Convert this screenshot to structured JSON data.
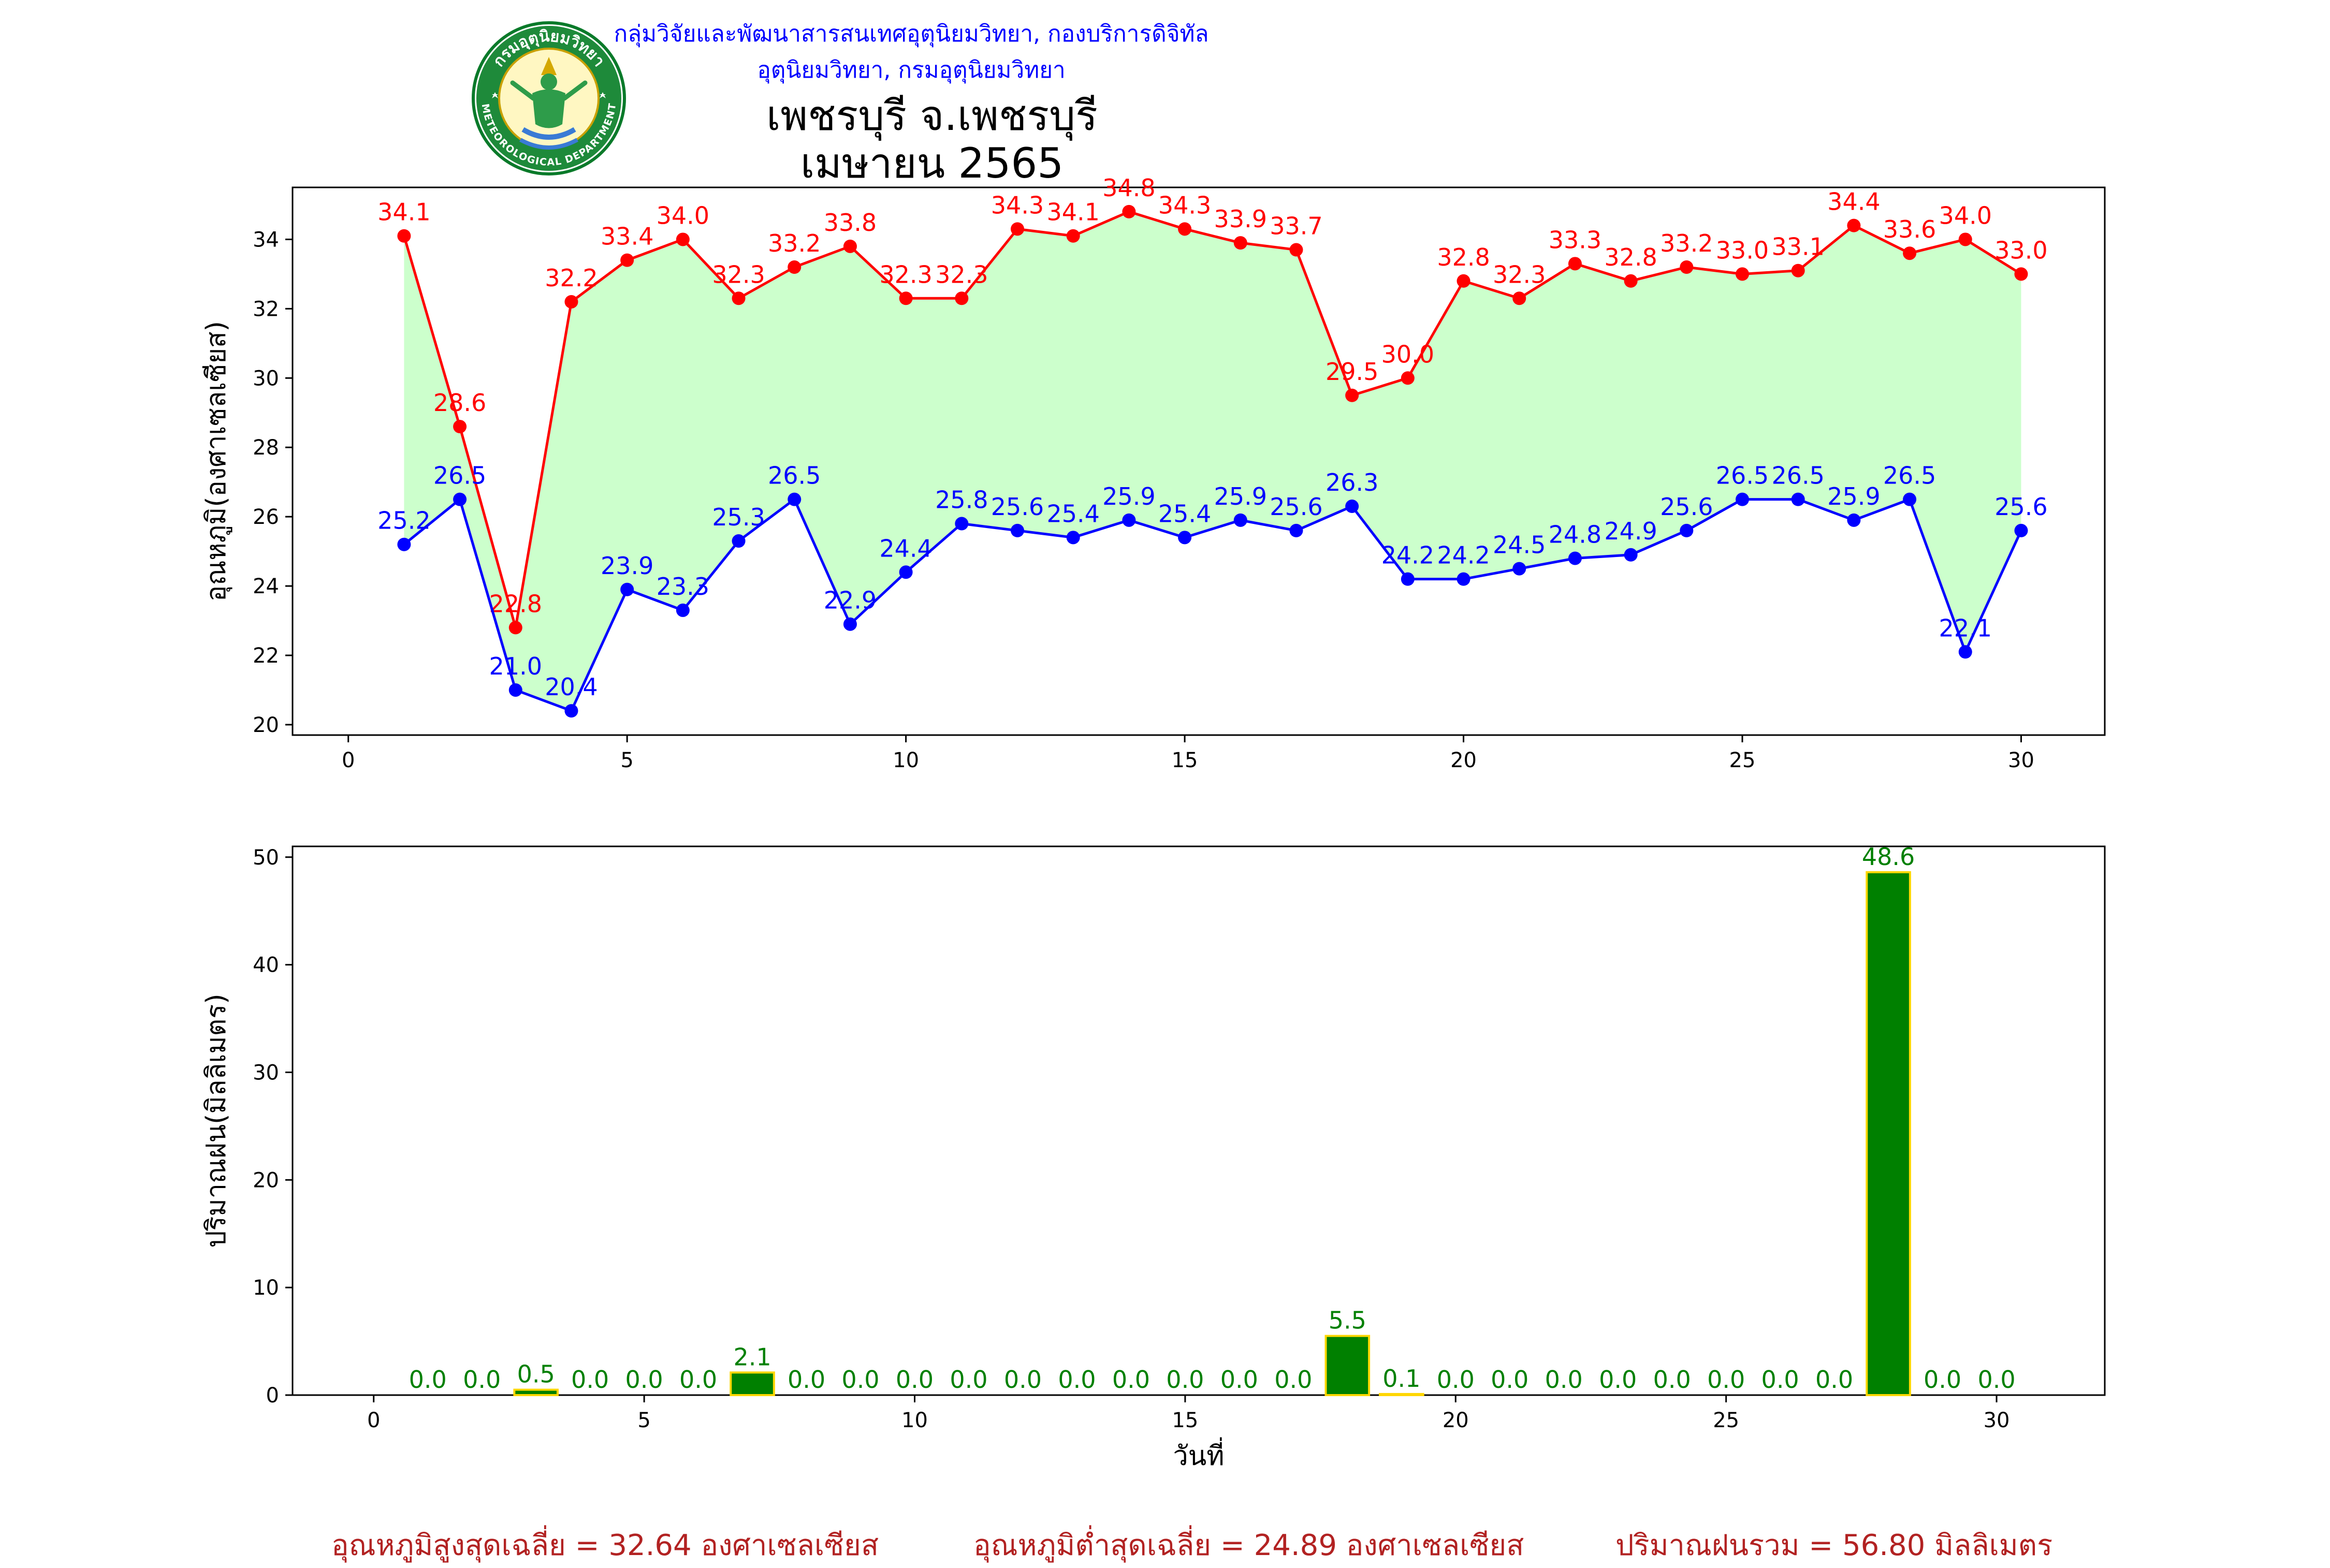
{
  "header": {
    "organization": "กลุ่มวิจัยและพัฒนาสารสนเทศอุตุนิยมวิทยา, กองบริการดิจิทัลอุตุนิยมวิทยา, กรมอุตุนิยมวิทยา",
    "station": "เพชรบุรี จ.เพชรบุรี",
    "period": "เมษายน 2565",
    "logo_text_top": "กรมอุตุนิยมวิทยา",
    "logo_text_bottom": "METEOROLOGICAL DEPARTMENT"
  },
  "colors": {
    "max_temp": "#ff0000",
    "min_temp": "#0000ff",
    "fill": "#ccffcc",
    "rain_bar": "#008000",
    "rain_edge": "#ffd700",
    "footer": "#b22222"
  },
  "chart_data": [
    {
      "type": "line",
      "ylabel": "อุณหภูมิ(องศาเซลเซียส)",
      "xlim": [
        -1,
        31.5
      ],
      "ylim": [
        19.7,
        35.5
      ],
      "xticks": [
        0,
        5,
        10,
        15,
        20,
        25,
        30
      ],
      "yticks": [
        20,
        22,
        24,
        26,
        28,
        30,
        32,
        34
      ],
      "x": [
        1,
        2,
        3,
        4,
        5,
        6,
        7,
        8,
        9,
        10,
        11,
        12,
        13,
        14,
        15,
        16,
        17,
        18,
        19,
        20,
        21,
        22,
        23,
        24,
        25,
        26,
        27,
        28,
        29,
        30
      ],
      "series": [
        {
          "key": "max",
          "values": [
            34.1,
            28.6,
            22.8,
            32.2,
            33.4,
            34.0,
            32.3,
            33.2,
            33.8,
            32.3,
            32.3,
            34.3,
            34.1,
            34.8,
            34.3,
            33.9,
            33.7,
            29.5,
            30.0,
            32.8,
            32.3,
            33.3,
            32.8,
            33.2,
            33.0,
            33.1,
            34.4,
            33.6,
            34.0,
            33.0
          ]
        },
        {
          "key": "min",
          "values": [
            25.2,
            26.5,
            21.0,
            20.4,
            23.9,
            23.3,
            25.3,
            26.5,
            22.9,
            24.4,
            25.8,
            25.6,
            25.4,
            25.9,
            25.4,
            25.9,
            25.6,
            26.3,
            24.2,
            24.2,
            24.5,
            24.8,
            24.9,
            25.6,
            26.5,
            26.5,
            25.9,
            26.5,
            22.1,
            25.6
          ]
        }
      ]
    },
    {
      "type": "bar",
      "ylabel": "ปริมาณฝน(มิลลิเมตร)",
      "xlabel": "วันที่",
      "xlim": [
        -1.5,
        32
      ],
      "ylim": [
        0,
        51
      ],
      "xticks": [
        0,
        5,
        10,
        15,
        20,
        25,
        30
      ],
      "yticks": [
        0,
        10,
        20,
        30,
        40,
        50
      ],
      "x": [
        1,
        2,
        3,
        4,
        5,
        6,
        7,
        8,
        9,
        10,
        11,
        12,
        13,
        14,
        15,
        16,
        17,
        18,
        19,
        20,
        21,
        22,
        23,
        24,
        25,
        26,
        27,
        28,
        29,
        30
      ],
      "values": [
        0.0,
        0.0,
        0.5,
        0.0,
        0.0,
        0.0,
        2.1,
        0.0,
        0.0,
        0.0,
        0.0,
        0.0,
        0.0,
        0.0,
        0.0,
        0.0,
        0.0,
        5.5,
        0.1,
        0.0,
        0.0,
        0.0,
        0.0,
        0.0,
        0.0,
        0.0,
        0.0,
        48.6,
        0.0,
        0.0
      ]
    }
  ],
  "footer": {
    "avg_max": "อุณหภูมิสูงสุดเฉลี่ย = 32.64 องศาเซลเซียส",
    "avg_min": "อุณหภูมิต่ำสุดเฉลี่ย = 24.89 องศาเซลเซียส",
    "total_rain": "ปริมาณฝนรวม = 56.80 มิลลิเมตร"
  }
}
